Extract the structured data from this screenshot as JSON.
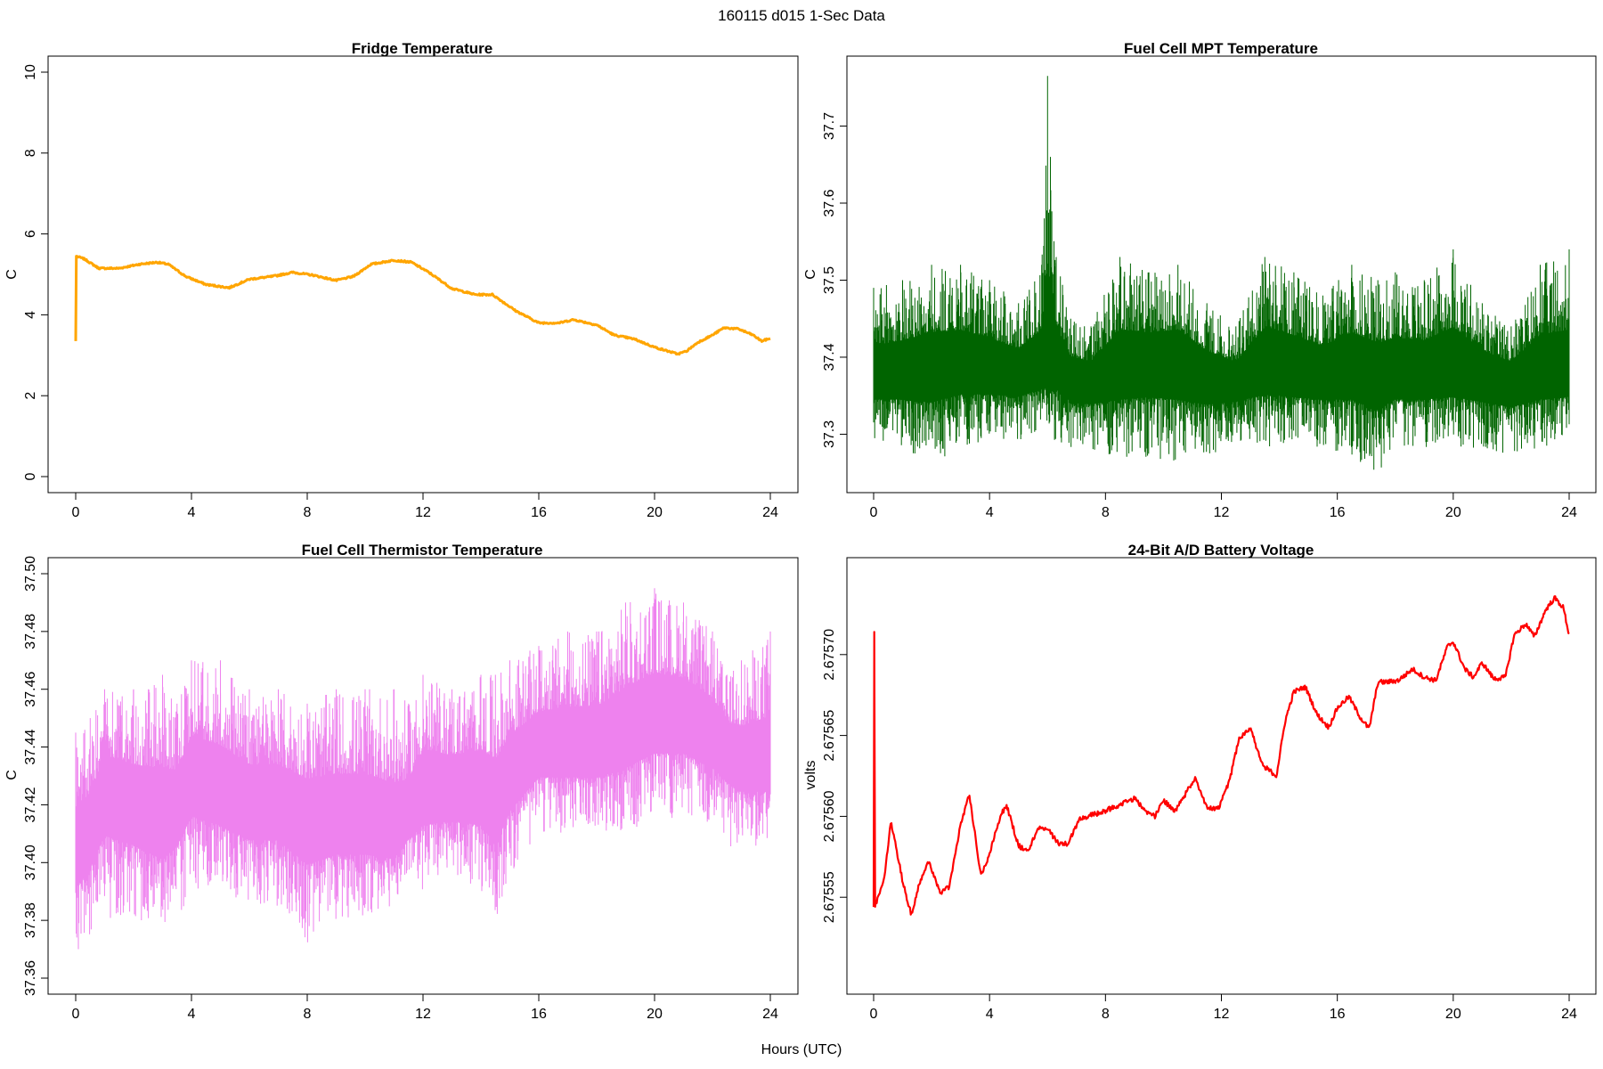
{
  "figure_title": "160115   d015   1-Sec Data",
  "shared_xlabel": "Hours (UTC)",
  "chart_data": [
    {
      "type": "line",
      "title": "Fridge Temperature",
      "xlabel": "",
      "ylabel": "C",
      "xlim": [
        0,
        24
      ],
      "ylim": [
        0,
        10
      ],
      "x_ticks": [
        "0",
        "4",
        "8",
        "12",
        "16",
        "20",
        "24"
      ],
      "y_ticks": [
        "0",
        "2",
        "4",
        "6",
        "8",
        "10"
      ],
      "color": "#FFA500",
      "series": [
        {
          "x": [
            0,
            0.02,
            0.3,
            0.8,
            1.5,
            2.2,
            2.8,
            3.2,
            3.8,
            4.5,
            5.3,
            6.0,
            6.8,
            7.5,
            8.2,
            9.0,
            9.6,
            10.2,
            11.0,
            11.6,
            12.2,
            13.0,
            13.8,
            14.4,
            15.2,
            16.0,
            16.7,
            17.2,
            18.0,
            18.6,
            19.3,
            20.0,
            20.8,
            21.1,
            21.5,
            22.0,
            22.4,
            22.9,
            23.4,
            23.7,
            24.0
          ],
          "y": [
            3.35,
            5.45,
            5.38,
            5.15,
            5.15,
            5.25,
            5.3,
            5.25,
            4.95,
            4.75,
            4.67,
            4.88,
            4.95,
            5.05,
            4.98,
            4.85,
            4.95,
            5.25,
            5.35,
            5.3,
            5.05,
            4.65,
            4.5,
            4.5,
            4.1,
            3.8,
            3.8,
            3.88,
            3.75,
            3.5,
            3.4,
            3.2,
            3.03,
            3.1,
            3.32,
            3.5,
            3.68,
            3.65,
            3.5,
            3.35,
            3.42
          ]
        }
      ]
    },
    {
      "type": "line",
      "title": "Fuel Cell MPT Temperature",
      "xlabel": "",
      "ylabel": "C",
      "xlim": [
        0,
        24
      ],
      "ylim": [
        37.245,
        37.77
      ],
      "x_ticks": [
        "0",
        "4",
        "8",
        "12",
        "16",
        "20",
        "24"
      ],
      "y_ticks": [
        "37.3",
        "37.4",
        "37.5",
        "37.6",
        "37.7"
      ],
      "color": "#006400",
      "series": [
        {
          "x": [
            0,
            1,
            2,
            3,
            4,
            5,
            5.8,
            6,
            6.1,
            6.3,
            6.8,
            7.5,
            8.5,
            9.5,
            10.5,
            11.5,
            12.5,
            13.5,
            14.5,
            15.5,
            16.5,
            17.4,
            18,
            19,
            20,
            21,
            22,
            23,
            24
          ],
          "mean": [
            37.375,
            37.38,
            37.385,
            37.39,
            37.385,
            37.38,
            37.39,
            37.395,
            37.39,
            37.395,
            37.375,
            37.37,
            37.385,
            37.39,
            37.39,
            37.375,
            37.37,
            37.39,
            37.385,
            37.38,
            37.385,
            37.375,
            37.38,
            37.38,
            37.385,
            37.375,
            37.37,
            37.38,
            37.38
          ],
          "max": [
            37.49,
            37.5,
            37.52,
            37.52,
            37.5,
            37.47,
            37.52,
            37.765,
            37.66,
            37.53,
            37.45,
            37.44,
            37.53,
            37.51,
            37.52,
            37.47,
            37.44,
            37.53,
            37.51,
            37.48,
            37.52,
            37.5,
            37.51,
            37.5,
            37.54,
            37.47,
            37.44,
            37.52,
            37.54
          ],
          "min": [
            37.29,
            37.28,
            37.26,
            37.28,
            37.29,
            37.29,
            37.3,
            37.3,
            37.29,
            37.29,
            37.28,
            37.28,
            37.27,
            37.27,
            37.26,
            37.27,
            37.29,
            37.28,
            37.28,
            37.28,
            37.27,
            37.25,
            37.28,
            37.28,
            37.28,
            37.28,
            37.27,
            37.28,
            37.29
          ]
        }
      ]
    },
    {
      "type": "line",
      "title": "Fuel Cell Thermistor Temperature",
      "xlabel": "",
      "ylabel": "C",
      "xlim": [
        0,
        24
      ],
      "ylim": [
        37.36,
        37.5
      ],
      "x_ticks": [
        "0",
        "4",
        "8",
        "12",
        "16",
        "20",
        "24"
      ],
      "y_ticks": [
        "37.36",
        "37.38",
        "37.40",
        "37.42",
        "37.44",
        "37.46",
        "37.48",
        "37.50"
      ],
      "color": "#EE82EE",
      "series": [
        {
          "x": [
            0,
            0.5,
            1,
            2,
            3,
            3.5,
            4,
            5,
            6,
            7,
            8,
            9,
            10,
            11,
            11.5,
            12,
            13,
            14,
            14.5,
            15,
            16,
            17,
            18,
            19,
            20,
            21,
            22,
            22.5,
            23,
            24
          ],
          "mean": [
            37.405,
            37.41,
            37.425,
            37.42,
            37.415,
            37.42,
            37.43,
            37.425,
            37.42,
            37.42,
            37.415,
            37.415,
            37.415,
            37.41,
            37.415,
            37.425,
            37.425,
            37.425,
            37.42,
            37.43,
            37.44,
            37.44,
            37.44,
            37.445,
            37.45,
            37.45,
            37.445,
            37.44,
            37.435,
            37.435
          ],
          "max": [
            37.445,
            37.45,
            37.46,
            37.46,
            37.465,
            37.455,
            37.47,
            37.47,
            37.46,
            37.46,
            37.455,
            37.46,
            37.46,
            37.46,
            37.455,
            37.465,
            37.46,
            37.465,
            37.465,
            37.47,
            37.475,
            37.48,
            37.48,
            37.49,
            37.495,
            37.49,
            37.48,
            37.465,
            37.47,
            37.48
          ],
          "min": [
            37.365,
            37.375,
            37.38,
            37.38,
            37.375,
            37.38,
            37.39,
            37.39,
            37.385,
            37.385,
            37.37,
            37.38,
            37.38,
            37.385,
            37.395,
            37.39,
            37.395,
            37.39,
            37.38,
            37.395,
            37.41,
            37.41,
            37.41,
            37.41,
            37.415,
            37.415,
            37.41,
            37.405,
            37.405,
            37.405
          ]
        }
      ]
    },
    {
      "type": "line",
      "title": "24-Bit A/D Battery Voltage",
      "xlabel": "",
      "ylabel": "volts",
      "xlim": [
        0,
        24
      ],
      "ylim": [
        2.6755,
        2.67575
      ],
      "x_ticks": [
        "0",
        "4",
        "8",
        "12",
        "16",
        "20",
        "24"
      ],
      "y_ticks": [
        "2.67555",
        "2.67560",
        "2.67565",
        "2.67570"
      ],
      "color": "#FF0000",
      "series": [
        {
          "x": [
            0,
            0.02,
            0.05,
            0.35,
            0.6,
            1.0,
            1.3,
            1.6,
            1.9,
            2.3,
            2.6,
            3.0,
            3.3,
            3.7,
            4.0,
            4.4,
            4.6,
            5.0,
            5.3,
            5.7,
            6.0,
            6.4,
            6.7,
            7.1,
            7.5,
            7.8,
            8.2,
            8.6,
            9.0,
            9.4,
            9.7,
            10.0,
            10.4,
            10.7,
            11.1,
            11.5,
            11.9,
            12.3,
            12.6,
            13.0,
            13.4,
            13.9,
            14.2,
            14.5,
            14.9,
            15.3,
            15.7,
            16.0,
            16.4,
            16.8,
            17.1,
            17.4,
            17.7,
            18.1,
            18.6,
            19.0,
            19.4,
            19.8,
            20.0,
            20.4,
            20.7,
            21.0,
            21.4,
            21.8,
            22.1,
            22.5,
            22.8,
            23.2,
            23.5,
            23.8,
            24.0
          ],
          "y": [
            2.675544,
            2.675714,
            2.675545,
            2.67556,
            2.675597,
            2.67556,
            2.675539,
            2.67556,
            2.675572,
            2.675553,
            2.675556,
            2.675595,
            2.675614,
            2.675563,
            2.675577,
            2.675602,
            2.675606,
            2.675582,
            2.675578,
            2.675593,
            2.675592,
            2.675583,
            2.675583,
            2.675598,
            2.675601,
            2.675602,
            2.675605,
            2.675608,
            2.675611,
            2.675603,
            2.6756,
            2.67561,
            2.675603,
            2.675612,
            2.675624,
            2.675605,
            2.675605,
            2.675623,
            2.675648,
            2.675655,
            2.675632,
            2.675625,
            2.675659,
            2.675677,
            2.67568,
            2.675663,
            2.675655,
            2.675667,
            2.675674,
            2.675661,
            2.675654,
            2.675683,
            2.675683,
            2.675684,
            2.675691,
            2.675686,
            2.675684,
            2.675705,
            2.675708,
            2.675691,
            2.675686,
            2.675695,
            2.675685,
            2.675686,
            2.675712,
            2.675719,
            2.675711,
            2.675728,
            2.675735,
            2.675729,
            2.675712
          ]
        }
      ]
    }
  ]
}
